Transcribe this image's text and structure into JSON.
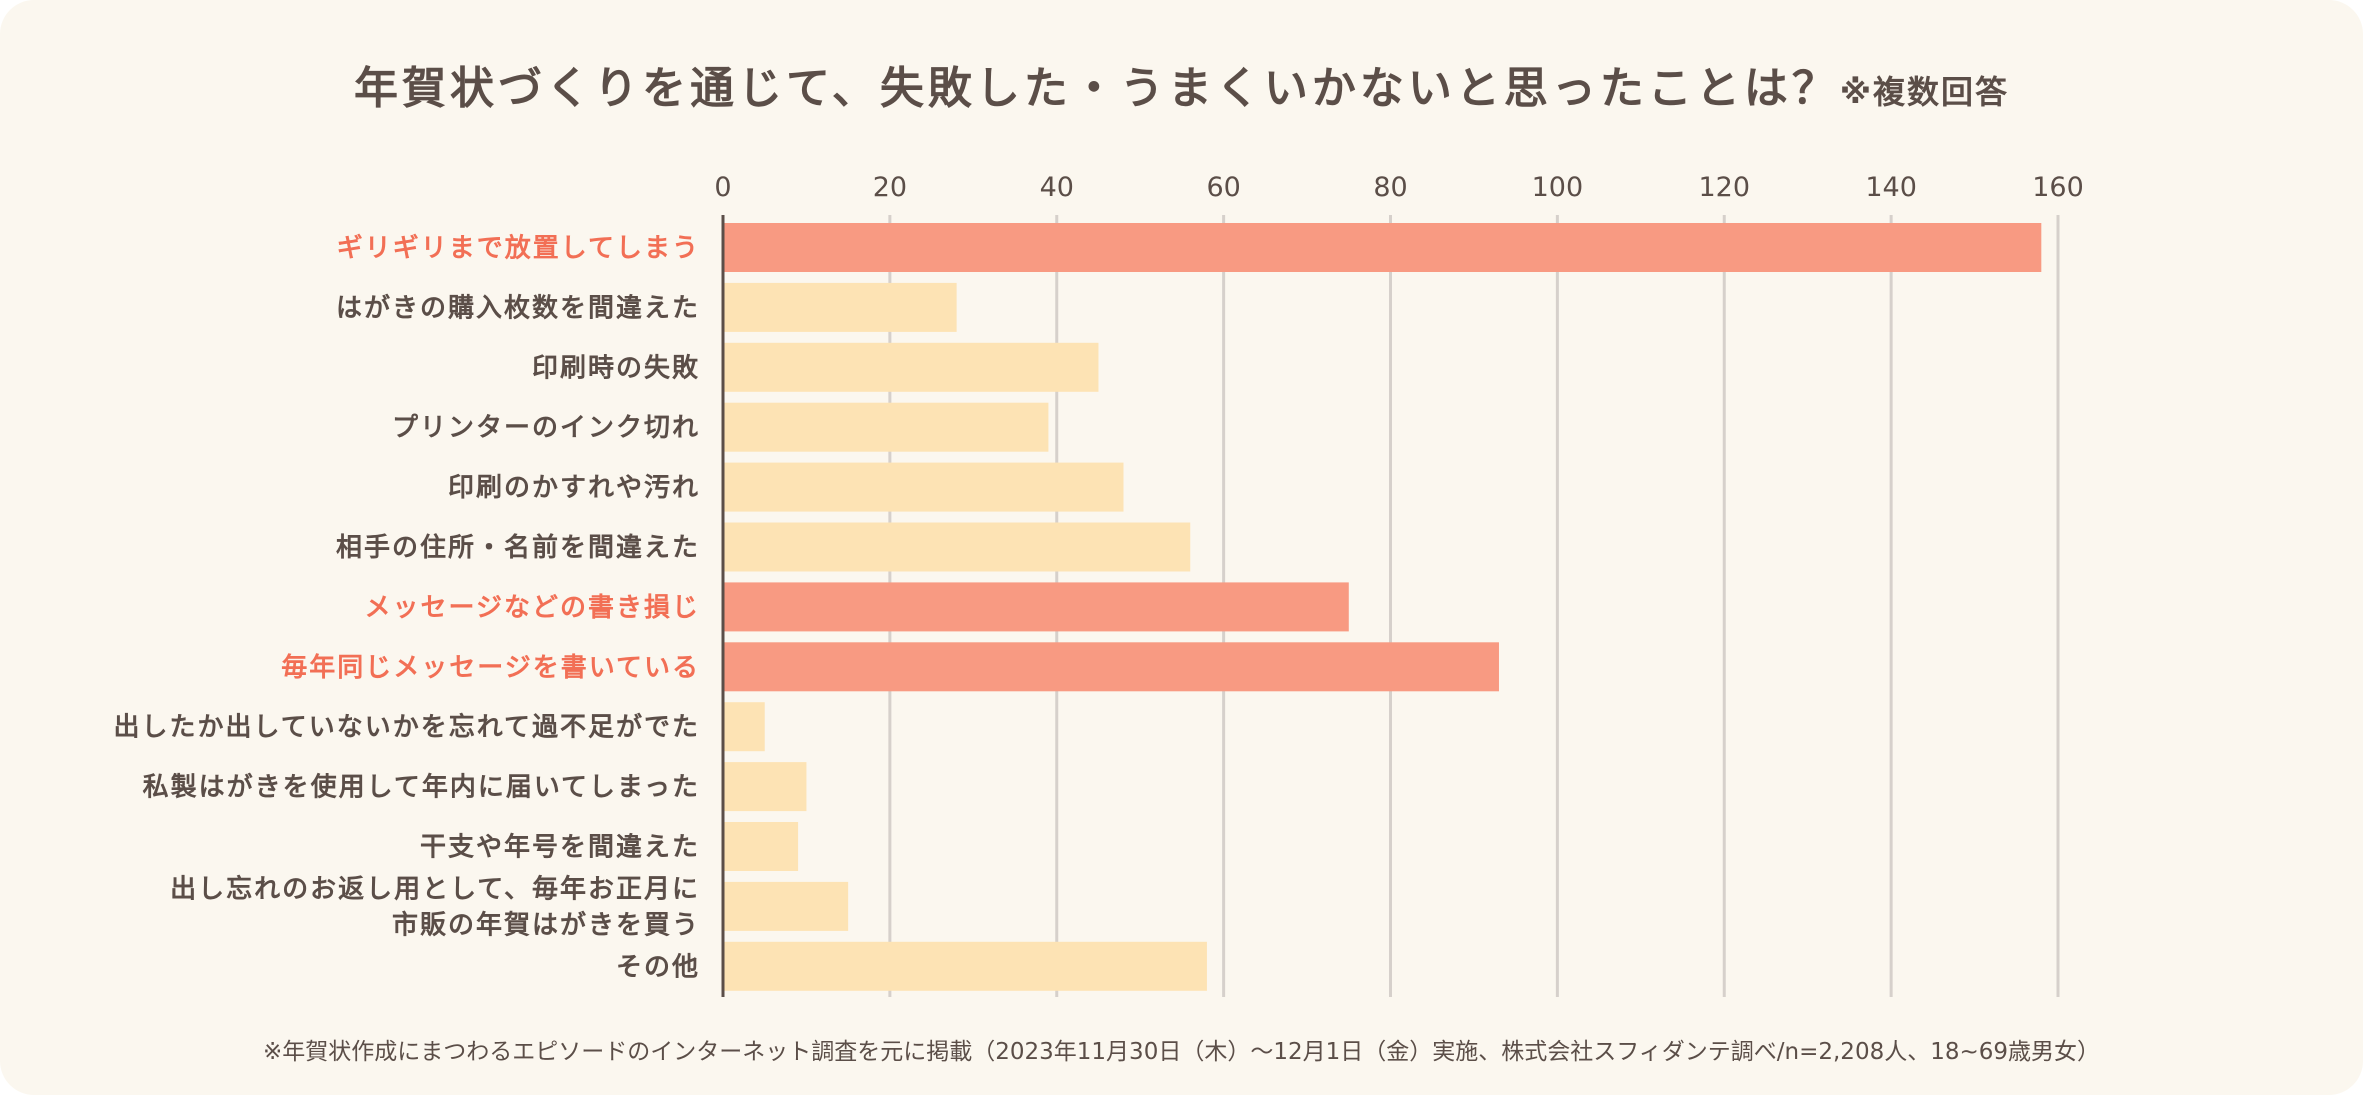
{
  "title": "年賀状づくりを通じて、失敗した・うまくいかないと思ったことは？",
  "title_note": "※複数回答",
  "footnote": "※年賀状作成にまつわるエピソードのインターネット調査を元に掲載（2023年11月30日（木）～12月1日（金）実施、株式会社スフィダンテ調べ/n=2,208人、18~69歳男女）",
  "colors": {
    "background": "#fbf7ef",
    "text": "#5b4e48",
    "highlight_bar": "#f89a82",
    "normal_bar": "#fde3b4",
    "highlight_label": "#f26f55",
    "gridline": "#d6d0cb",
    "axis": "#5b4e48"
  },
  "chart_data": {
    "type": "bar",
    "orientation": "horizontal",
    "title": "年賀状づくりを通じて、失敗した・うまくいかないと思ったことは？",
    "xlim": [
      0,
      160
    ],
    "xticks": [
      0,
      20,
      40,
      60,
      80,
      100,
      120,
      140,
      160
    ],
    "xtick_position": "top",
    "grid": true,
    "categories": [
      "ギリギリまで放置してしまう",
      "はがきの購入枚数を間違えた",
      "印刷時の失敗",
      "プリンターのインク切れ",
      "印刷のかすれや汚れ",
      "相手の住所・名前を間違えた",
      "メッセージなどの書き損じ",
      "毎年同じメッセージを書いている",
      "出したか出していないかを忘れて過不足がでた",
      "私製はがきを使用して年内に届いてしまった",
      "干支や年号を間違えた",
      "出し忘れのお返し用として、毎年お正月に\n市販の年賀はがきを買う",
      "その他"
    ],
    "values": [
      158,
      28,
      45,
      39,
      48,
      56,
      75,
      93,
      5,
      10,
      9,
      15,
      58
    ],
    "highlighted": [
      true,
      false,
      false,
      false,
      false,
      false,
      true,
      true,
      false,
      false,
      false,
      false,
      false
    ]
  }
}
